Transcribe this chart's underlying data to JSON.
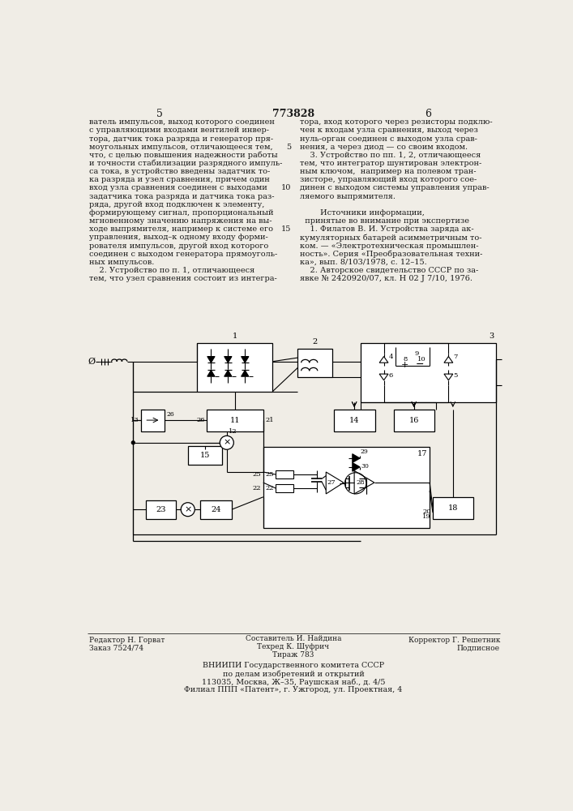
{
  "patent_number": "773828",
  "bg": "#f0ede6",
  "tc": "#1a1a1a",
  "left_col": [
    "ватель импульсов, выход которого соединен",
    "с управляющими входами вентилей инвер-",
    "тора, датчик тока разряда и генератор пря-",
    "моугольных импульсов, отличающееся тем,",
    "что, с целью повышения надежности работы",
    "и точности стабилизации разрядного импуль-",
    "са тока, в устройство введены задатчик то-",
    "ка разряда и узел сравнения, причем один",
    "вход узла сравнения соединен с выходами",
    "задатчика тока разряда и датчика тока раз-",
    "ряда, другой вход подключен к элементу,",
    "формирующему сигнал, пропорциональный",
    "мгновенному значению напряжения на вы-",
    "ходе выпрямителя, например к системе его",
    "управления, выход–к одному входу форми-",
    "рователя импульсов, другой вход которого",
    "соединен с выходом генератора прямоуголь-",
    "ных импульсов.",
    "    2. Устройство по п. 1, отличающееся",
    "тем, что узел сравнения состоит из интегра-"
  ],
  "right_col": [
    "тора, вход которого через резисторы подклю-",
    "чен к входам узла сравнения, выход через",
    "нуль-орган соединен с выходом узла срав-",
    "нения, а через диод — со своим входом.",
    "    3. Устройство по пп. 1, 2, отличающееся",
    "тем, что интегратор шунтирован электрон-",
    "ным ключом,  например на полевом тран-",
    "зисторе, управляющий вход которого сое-",
    "динен с выходом системы управления управ-",
    "ляемого выпрямителя.",
    "",
    "        Источники информации,",
    "  принятые во внимание при экспертизе",
    "    1. Филатов В. И. Устройства заряда ак-",
    "кумуляторных батарей асимметричным то-",
    "ком. — «Электротехническая промышлен-",
    "ность». Серия «Преобразовательная техни-",
    "ка», вып. 8/103/1978, с. 12–15.",
    "    2. Авторское свидетельство СССР по за-",
    "явке № 2420920/07, кл. H 02 J 7/10, 1976."
  ],
  "footer_left1": "Редактор Н. Горват",
  "footer_left2": "Заказ 7524/74",
  "footer_c1": "Составитель И. Найдина",
  "footer_c2": "Техред К. Шуфрич",
  "footer_c3": "Тираж 783",
  "footer_r1": "Корректор Г. Решетник",
  "footer_r2": "Подписное",
  "vniip1": "ВНИИПИ Государственного комитета СССР",
  "vniip2": "по делам изобретений и открытий",
  "vniip3": "113035, Москва, Ж–35, Раушская наб., д. 4/5",
  "vniip4": "Филиал ППП «Патент», г. Ужгород, ул. Проектная, 4"
}
